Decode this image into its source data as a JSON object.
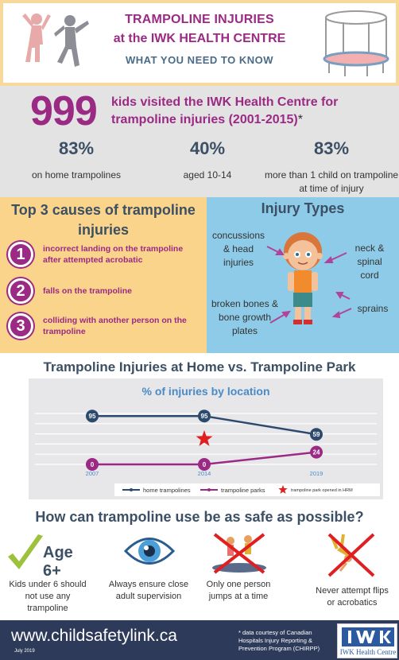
{
  "header": {
    "title_line1": "TRAMPOLINE INJURIES",
    "title_line2": "at the IWK HEALTH CENTRE",
    "subtitle": "WHAT YOU NEED TO KNOW"
  },
  "stats": {
    "big_number": "999",
    "lead": "kids visited the IWK Health Centre for trampoline injuries (2001-2015)",
    "lead_asterisk": "*",
    "items": [
      {
        "pct": "83%",
        "text": "on home trampolines"
      },
      {
        "pct": "40%",
        "text": "aged 10-14"
      },
      {
        "pct": "83%",
        "text": "more than 1 child on trampoline at time of injury"
      }
    ]
  },
  "causes": {
    "title": "Top 3 causes of trampoline injuries",
    "items": [
      {
        "num": "1",
        "text": "incorrect landing on the trampoline after attempted acrobatic"
      },
      {
        "num": "2",
        "text": "falls on the trampoline"
      },
      {
        "num": "3",
        "text": "colliding with another person on the trampoline"
      }
    ]
  },
  "injuries": {
    "title": "Injury Types",
    "concussions": "concussions & head injuries",
    "neck": "neck & spinal cord",
    "broken": "broken bones & bone growth plates",
    "sprains": "sprains"
  },
  "chart_section": {
    "title": "Trampoline Injuries at Home vs. Trampoline Park"
  },
  "chart_data": {
    "type": "line",
    "title": "% of injuries by location",
    "x": [
      "2007",
      "2014",
      "2019"
    ],
    "series": [
      {
        "name": "home trampolines",
        "values": [
          95,
          95,
          59
        ],
        "color": "#2d4a6e"
      },
      {
        "name": "trampoline parks",
        "values": [
          0,
          0,
          24
        ],
        "color": "#9b2a84"
      }
    ],
    "annotation": {
      "label": "trampoline park opened in HRM",
      "x": "2014",
      "marker": "star",
      "color": "#e02020"
    },
    "grid": true,
    "legend_position": "bottom"
  },
  "safety": {
    "title": "How can trampoline use be as safe as possible?",
    "age_label": "Age 6+",
    "tips": [
      "Kids under 6 should not use any trampoline",
      "Always ensure close adult supervision",
      "Only one person jumps at a time",
      "Never attempt flips or acrobatics"
    ]
  },
  "footer": {
    "site": "www.childsafetylink.ca",
    "date": "July 2019",
    "note": "* data courtesy of Canadian Hospitals Injury Reporting & Prevention Program (CHIRPP)",
    "logo_text": "IWK Health Centre"
  },
  "colors": {
    "purple": "#9b2a84",
    "navy": "#3c4f64",
    "yellow": "#fad48a",
    "blue": "#8ecbe8",
    "gray": "#e3e3e4",
    "footer": "#2d3a5a"
  }
}
